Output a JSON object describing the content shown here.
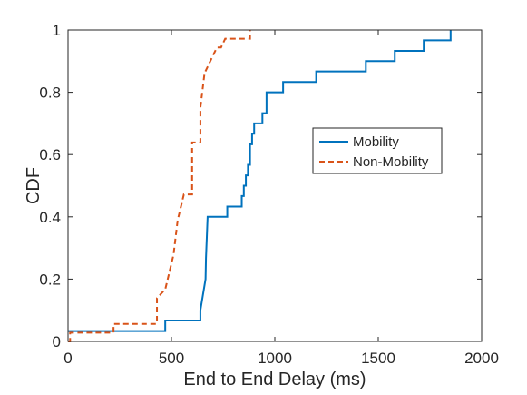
{
  "chart_data": {
    "type": "line",
    "xlabel": "End to End Delay (ms)",
    "ylabel": "CDF",
    "xlim": [
      0,
      2000
    ],
    "ylim": [
      0,
      1
    ],
    "xticks": [
      "0",
      "500",
      "1000",
      "1500",
      "2000"
    ],
    "yticks": [
      "0",
      "0.2",
      "0.4",
      "0.6",
      "0.8",
      "1"
    ],
    "grid": false,
    "legend_position": "right",
    "series": [
      {
        "name": "Mobility",
        "style": "solid",
        "color": "#0072BD",
        "x": [
          0,
          470,
          470,
          640,
          640,
          665,
          667,
          669,
          671,
          673,
          675,
          675,
          740,
          740,
          770,
          770,
          840,
          840,
          850,
          850,
          860,
          860,
          870,
          870,
          880,
          880,
          890,
          890,
          900,
          900,
          940,
          940,
          960,
          960,
          1040,
          1040,
          1200,
          1200,
          1440,
          1440,
          1580,
          1580,
          1720,
          1720,
          1850,
          1850
        ],
        "y": [
          0.033,
          0.033,
          0.067,
          0.067,
          0.1,
          0.2,
          0.267,
          0.3,
          0.333,
          0.367,
          0.4,
          0.4,
          0.4,
          0.4,
          0.4,
          0.433,
          0.433,
          0.467,
          0.467,
          0.5,
          0.5,
          0.533,
          0.533,
          0.567,
          0.567,
          0.633,
          0.633,
          0.667,
          0.667,
          0.7,
          0.7,
          0.733,
          0.733,
          0.8,
          0.8,
          0.833,
          0.833,
          0.867,
          0.867,
          0.9,
          0.9,
          0.933,
          0.933,
          0.967,
          0.967,
          1.0
        ]
      },
      {
        "name": "Non-Mobility",
        "style": "dashed",
        "color": "#D95319",
        "x": [
          0,
          10,
          10,
          220,
          220,
          430,
          430,
          470,
          490,
          510,
          530,
          550,
          560,
          600,
          600,
          640,
          640,
          660,
          680,
          700,
          720,
          740,
          760,
          780,
          800,
          840,
          880,
          880
        ],
        "y": [
          0,
          0,
          0.028,
          0.028,
          0.056,
          0.056,
          0.139,
          0.167,
          0.222,
          0.278,
          0.389,
          0.444,
          0.472,
          0.472,
          0.639,
          0.639,
          0.75,
          0.861,
          0.889,
          0.917,
          0.944,
          0.944,
          0.972,
          0.972,
          0.972,
          0.972,
          0.972,
          1.0
        ]
      }
    ]
  }
}
